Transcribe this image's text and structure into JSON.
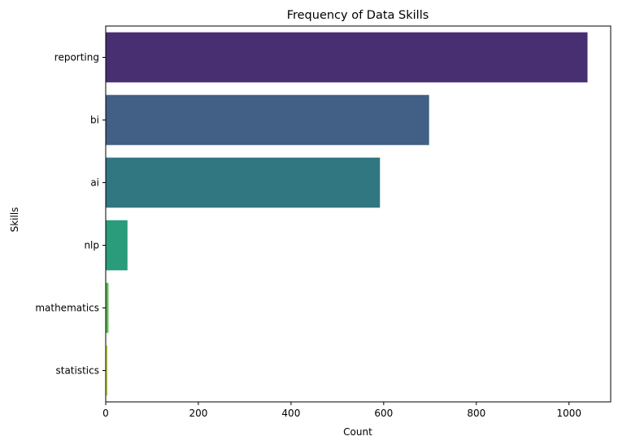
{
  "chart_data": {
    "type": "bar",
    "orientation": "horizontal",
    "title": "Frequency of Data Skills",
    "xlabel": "Count",
    "ylabel": "Skills",
    "categories": [
      "reporting",
      "bi",
      "ai",
      "nlp",
      "mathematics",
      "statistics"
    ],
    "values": [
      1040,
      698,
      592,
      47,
      6,
      4
    ],
    "colors": [
      "#482f71",
      "#425f86",
      "#307781",
      "#2a9b7b",
      "#5dba4f",
      "#cbd74b"
    ],
    "xlim": [
      0,
      1090
    ],
    "xticks": [
      0,
      200,
      400,
      600,
      800,
      1000
    ],
    "grid": false,
    "legend": "none"
  }
}
